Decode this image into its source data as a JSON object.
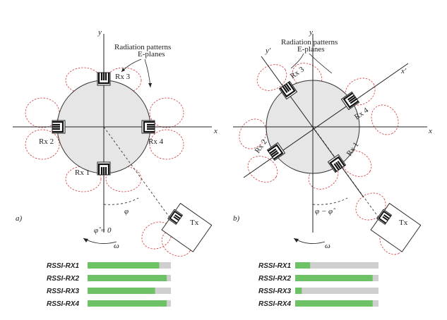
{
  "panel_a": {
    "label": "a)",
    "axis_x": "x",
    "axis_y": "y",
    "annotation_line1": "Radiation patterns",
    "annotation_line2": "E-planes",
    "rx_labels": [
      "Rx 1",
      "Rx 2",
      "Rx 3",
      "Rx 4"
    ],
    "tx_label": "Tx",
    "phi": "φ",
    "phi_hat": "φ̂ = 0",
    "omega": "ω"
  },
  "panel_b": {
    "label": "b)",
    "axis_x": "x",
    "axis_y": "y",
    "axis_x_prime": "x'",
    "axis_y_prime": "y'",
    "annotation_line1": "Radiation patterns",
    "annotation_line2": "E-planes",
    "rx_labels": [
      "Rx 1",
      "Rx 2",
      "Rx 3",
      "Rx 4"
    ],
    "tx_label": "Tx",
    "phi_diff": "φ − φ̂",
    "omega": "ω"
  },
  "rssi_a": [
    {
      "label": "RSSI-RX1",
      "level": 0.86
    },
    {
      "label": "RSSI-RX2",
      "level": 0.95
    },
    {
      "label": "RSSI-RX3",
      "level": 0.81
    },
    {
      "label": "RSSI-RX4",
      "level": 0.95
    }
  ],
  "rssi_b": [
    {
      "label": "RSSI-RX1",
      "level": 0.18
    },
    {
      "label": "RSSI-RX2",
      "level": 0.93
    },
    {
      "label": "RSSI-RX3",
      "level": 0.08
    },
    {
      "label": "RSSI-RX4",
      "level": 0.93
    }
  ],
  "colors": {
    "petal": "#d23a3a",
    "disk": "#e6e6e6",
    "bar_fill": "#6dc266",
    "bar_track": "#cfcfcf"
  }
}
